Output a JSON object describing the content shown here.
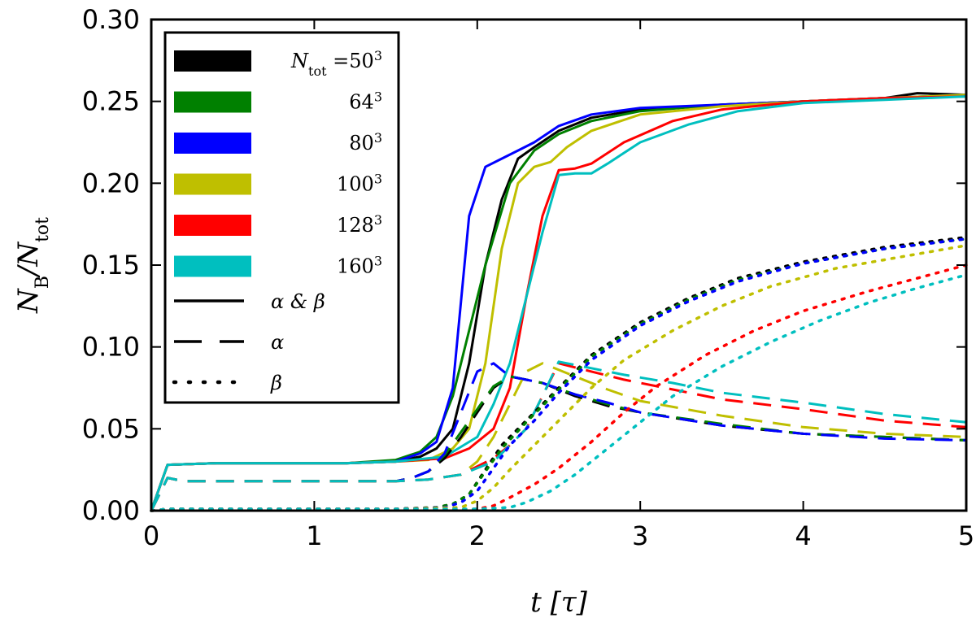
{
  "chart_data": {
    "type": "line",
    "title": "",
    "xlabel": "t [τ]",
    "ylabel": "N_B/N_tot",
    "ylabel_main": "N",
    "ylabel_main_sub": "B",
    "ylabel_denom": "/N",
    "ylabel_denom_sub": "tot",
    "xlim": [
      0,
      5
    ],
    "ylim": [
      0,
      0.3
    ],
    "xticks": [
      0,
      1,
      2,
      3,
      4,
      5
    ],
    "xtick_labels": [
      "0",
      "1",
      "2",
      "3",
      "4",
      "5"
    ],
    "yticks": [
      0,
      0.05,
      0.1,
      0.15,
      0.2,
      0.25,
      0.3
    ],
    "ytick_labels": [
      "0.00",
      "0.05",
      "0.10",
      "0.15",
      "0.20",
      "0.25",
      "0.30"
    ],
    "legend_position": "top-left",
    "legend": {
      "resolutions": [
        {
          "label_prefix": "N",
          "label_sub": "tot",
          "label_eq": " =50",
          "label_sup": "3",
          "color": "#000000"
        },
        {
          "label_prefix": "",
          "label_sub": "",
          "label_eq": "64",
          "label_sup": "3",
          "color": "#008000"
        },
        {
          "label_prefix": "",
          "label_sub": "",
          "label_eq": "80",
          "label_sup": "3",
          "color": "#0000ff"
        },
        {
          "label_prefix": "",
          "label_sub": "",
          "label_eq": "100",
          "label_sup": "3",
          "color": "#bfbf00"
        },
        {
          "label_prefix": "",
          "label_sub": "",
          "label_eq": "128",
          "label_sup": "3",
          "color": "#ff0000"
        },
        {
          "label_prefix": "",
          "label_sub": "",
          "label_eq": "160",
          "label_sup": "3",
          "color": "#00bfbf"
        }
      ],
      "styles": [
        {
          "label": "α & β",
          "dash": "solid"
        },
        {
          "label": "α",
          "dash": "dashed"
        },
        {
          "label": "β",
          "dash": "dotted"
        }
      ]
    },
    "series": [
      {
        "name": "50^3 α&β",
        "color": "#000000",
        "dash": "solid",
        "x": [
          0,
          0.1,
          0.4,
          0.8,
          1.2,
          1.5,
          1.65,
          1.75,
          1.85,
          1.95,
          2.05,
          2.15,
          2.25,
          2.35,
          2.5,
          2.7,
          3.0,
          3.5,
          4.0,
          4.5,
          4.7,
          5.0
        ],
        "y": [
          0,
          0.028,
          0.029,
          0.029,
          0.029,
          0.03,
          0.033,
          0.038,
          0.05,
          0.09,
          0.15,
          0.19,
          0.215,
          0.222,
          0.232,
          0.24,
          0.245,
          0.248,
          0.25,
          0.252,
          0.255,
          0.254
        ]
      },
      {
        "name": "64^3 α&β",
        "color": "#008000",
        "dash": "solid",
        "x": [
          0,
          0.1,
          0.4,
          0.8,
          1.2,
          1.5,
          1.65,
          1.75,
          1.85,
          1.95,
          2.05,
          2.2,
          2.35,
          2.5,
          2.7,
          3.0,
          3.5,
          4.0,
          4.5,
          5.0
        ],
        "y": [
          0,
          0.028,
          0.029,
          0.029,
          0.029,
          0.031,
          0.036,
          0.045,
          0.07,
          0.11,
          0.15,
          0.2,
          0.22,
          0.23,
          0.238,
          0.244,
          0.248,
          0.25,
          0.252,
          0.254
        ]
      },
      {
        "name": "80^3 α&β",
        "color": "#0000ff",
        "dash": "solid",
        "x": [
          0,
          0.1,
          0.4,
          0.8,
          1.2,
          1.5,
          1.65,
          1.75,
          1.85,
          1.95,
          2.05,
          2.15,
          2.25,
          2.35,
          2.5,
          2.7,
          3.0,
          3.5,
          4.0,
          4.5,
          5.0
        ],
        "y": [
          0,
          0.028,
          0.029,
          0.029,
          0.029,
          0.03,
          0.035,
          0.042,
          0.075,
          0.18,
          0.21,
          0.215,
          0.22,
          0.225,
          0.235,
          0.242,
          0.246,
          0.248,
          0.25,
          0.252,
          0.254
        ]
      },
      {
        "name": "100^3 α&β",
        "color": "#bfbf00",
        "dash": "solid",
        "x": [
          0,
          0.1,
          0.4,
          0.8,
          1.2,
          1.5,
          1.7,
          1.85,
          1.95,
          2.05,
          2.15,
          2.25,
          2.35,
          2.45,
          2.55,
          2.7,
          3.0,
          3.5,
          4.0,
          4.5,
          5.0
        ],
        "y": [
          0,
          0.028,
          0.029,
          0.029,
          0.029,
          0.03,
          0.031,
          0.038,
          0.05,
          0.09,
          0.16,
          0.2,
          0.21,
          0.213,
          0.222,
          0.232,
          0.242,
          0.247,
          0.25,
          0.252,
          0.254
        ]
      },
      {
        "name": "128^3 α&β",
        "color": "#ff0000",
        "dash": "solid",
        "x": [
          0,
          0.1,
          0.4,
          0.8,
          1.2,
          1.5,
          1.8,
          1.95,
          2.1,
          2.2,
          2.3,
          2.4,
          2.5,
          2.6,
          2.7,
          2.9,
          3.2,
          3.5,
          4.0,
          4.5,
          5.0
        ],
        "y": [
          0,
          0.028,
          0.029,
          0.029,
          0.029,
          0.03,
          0.032,
          0.038,
          0.05,
          0.075,
          0.13,
          0.18,
          0.208,
          0.209,
          0.212,
          0.225,
          0.238,
          0.245,
          0.25,
          0.252,
          0.253
        ]
      },
      {
        "name": "160^3 α&β",
        "color": "#00bfbf",
        "dash": "solid",
        "x": [
          0,
          0.1,
          0.4,
          0.8,
          1.2,
          1.5,
          1.8,
          2.0,
          2.1,
          2.2,
          2.3,
          2.4,
          2.5,
          2.6,
          2.7,
          2.8,
          3.0,
          3.3,
          3.6,
          4.0,
          4.5,
          5.0
        ],
        "y": [
          0,
          0.028,
          0.029,
          0.029,
          0.029,
          0.03,
          0.033,
          0.045,
          0.065,
          0.09,
          0.13,
          0.17,
          0.205,
          0.206,
          0.206,
          0.212,
          0.225,
          0.236,
          0.244,
          0.249,
          0.251,
          0.253
        ]
      },
      {
        "name": "50^3 α",
        "color": "#000000",
        "dash": "dashed",
        "x": [
          0,
          0.1,
          0.2,
          0.5,
          1.0,
          1.5,
          1.6,
          1.7,
          1.8,
          1.9,
          2.0,
          2.1,
          2.2,
          2.4,
          2.6,
          2.8,
          3.0,
          3.5,
          4.0,
          4.5,
          5.0
        ],
        "y": [
          0,
          0.02,
          0.018,
          0.018,
          0.018,
          0.018,
          0.02,
          0.024,
          0.032,
          0.045,
          0.06,
          0.075,
          0.082,
          0.078,
          0.07,
          0.064,
          0.06,
          0.052,
          0.047,
          0.045,
          0.043
        ]
      },
      {
        "name": "64^3 α",
        "color": "#008000",
        "dash": "dashed",
        "x": [
          0,
          0.1,
          0.2,
          0.5,
          1.0,
          1.5,
          1.6,
          1.7,
          1.8,
          1.9,
          2.0,
          2.1,
          2.2,
          2.4,
          2.6,
          2.8,
          3.0,
          3.5,
          4.0,
          4.5,
          5.0
        ],
        "y": [
          0,
          0.02,
          0.018,
          0.018,
          0.018,
          0.018,
          0.02,
          0.024,
          0.034,
          0.048,
          0.062,
          0.076,
          0.082,
          0.078,
          0.071,
          0.065,
          0.06,
          0.053,
          0.047,
          0.045,
          0.043
        ]
      },
      {
        "name": "80^3 α",
        "color": "#0000ff",
        "dash": "dashed",
        "x": [
          0,
          0.1,
          0.2,
          0.5,
          1.0,
          1.5,
          1.6,
          1.7,
          1.8,
          1.9,
          2.0,
          2.1,
          2.2,
          2.4,
          2.6,
          2.8,
          3.0,
          3.5,
          4.0,
          4.5,
          5.0
        ],
        "y": [
          0,
          0.02,
          0.018,
          0.018,
          0.018,
          0.018,
          0.02,
          0.024,
          0.035,
          0.06,
          0.085,
          0.09,
          0.082,
          0.078,
          0.071,
          0.066,
          0.06,
          0.052,
          0.047,
          0.044,
          0.043
        ]
      },
      {
        "name": "100^3 α",
        "color": "#bfbf00",
        "dash": "dashed",
        "x": [
          0,
          0.1,
          0.2,
          0.5,
          1.0,
          1.5,
          1.7,
          1.9,
          2.0,
          2.1,
          2.2,
          2.3,
          2.4,
          2.6,
          2.8,
          3.0,
          3.5,
          4.0,
          4.5,
          5.0
        ],
        "y": [
          0,
          0.02,
          0.018,
          0.018,
          0.018,
          0.018,
          0.019,
          0.022,
          0.03,
          0.045,
          0.065,
          0.085,
          0.09,
          0.082,
          0.074,
          0.067,
          0.058,
          0.051,
          0.047,
          0.045
        ]
      },
      {
        "name": "128^3 α",
        "color": "#ff0000",
        "dash": "dashed",
        "x": [
          0,
          0.1,
          0.2,
          0.5,
          1.0,
          1.5,
          1.7,
          1.9,
          2.1,
          2.2,
          2.3,
          2.4,
          2.5,
          2.7,
          2.9,
          3.2,
          3.5,
          4.0,
          4.5,
          5.0
        ],
        "y": [
          0,
          0.02,
          0.018,
          0.018,
          0.018,
          0.018,
          0.019,
          0.022,
          0.032,
          0.04,
          0.05,
          0.07,
          0.09,
          0.085,
          0.08,
          0.074,
          0.068,
          0.062,
          0.055,
          0.051
        ]
      },
      {
        "name": "160^3 α",
        "color": "#00bfbf",
        "dash": "dashed",
        "x": [
          0,
          0.1,
          0.2,
          0.5,
          1.0,
          1.5,
          1.7,
          1.9,
          2.1,
          2.2,
          2.3,
          2.4,
          2.5,
          2.7,
          2.9,
          3.2,
          3.5,
          4.0,
          4.5,
          5.0
        ],
        "y": [
          0,
          0.02,
          0.018,
          0.018,
          0.018,
          0.018,
          0.019,
          0.022,
          0.03,
          0.04,
          0.05,
          0.07,
          0.091,
          0.087,
          0.083,
          0.078,
          0.072,
          0.066,
          0.059,
          0.054
        ]
      },
      {
        "name": "50^3 β",
        "color": "#000000",
        "dash": "dotted",
        "x": [
          0,
          0.1,
          0.5,
          1.0,
          1.5,
          1.75,
          1.85,
          1.95,
          2.05,
          2.15,
          2.3,
          2.5,
          2.7,
          3.0,
          3.3,
          3.6,
          4.0,
          4.5,
          5.0
        ],
        "y": [
          0,
          0.001,
          0.001,
          0.001,
          0.001,
          0.002,
          0.004,
          0.01,
          0.025,
          0.04,
          0.055,
          0.075,
          0.095,
          0.115,
          0.13,
          0.142,
          0.152,
          0.161,
          0.167
        ]
      },
      {
        "name": "64^3 β",
        "color": "#008000",
        "dash": "dotted",
        "x": [
          0,
          0.1,
          0.5,
          1.0,
          1.5,
          1.75,
          1.85,
          1.95,
          2.05,
          2.15,
          2.3,
          2.5,
          2.7,
          3.0,
          3.3,
          3.6,
          4.0,
          4.5,
          5.0
        ],
        "y": [
          0,
          0.001,
          0.001,
          0.001,
          0.001,
          0.002,
          0.004,
          0.01,
          0.024,
          0.038,
          0.054,
          0.074,
          0.094,
          0.114,
          0.129,
          0.141,
          0.151,
          0.16,
          0.166
        ]
      },
      {
        "name": "80^3 β",
        "color": "#0000ff",
        "dash": "dotted",
        "x": [
          0,
          0.1,
          0.5,
          1.0,
          1.5,
          1.8,
          1.9,
          2.0,
          2.1,
          2.2,
          2.35,
          2.5,
          2.7,
          3.0,
          3.3,
          3.6,
          4.0,
          4.5,
          5.0
        ],
        "y": [
          0,
          0.001,
          0.001,
          0.001,
          0.001,
          0.002,
          0.005,
          0.012,
          0.026,
          0.04,
          0.055,
          0.072,
          0.092,
          0.113,
          0.128,
          0.14,
          0.151,
          0.16,
          0.166
        ]
      },
      {
        "name": "100^3 β",
        "color": "#bfbf00",
        "dash": "dotted",
        "x": [
          0,
          0.1,
          0.5,
          1.0,
          1.5,
          1.9,
          2.0,
          2.1,
          2.2,
          2.35,
          2.5,
          2.7,
          2.9,
          3.2,
          3.5,
          3.8,
          4.2,
          4.6,
          5.0
        ],
        "y": [
          0,
          0.001,
          0.001,
          0.001,
          0.001,
          0.002,
          0.006,
          0.014,
          0.025,
          0.04,
          0.055,
          0.075,
          0.092,
          0.11,
          0.125,
          0.137,
          0.148,
          0.155,
          0.162
        ]
      },
      {
        "name": "128^3 β",
        "color": "#ff0000",
        "dash": "dotted",
        "x": [
          0,
          0.1,
          0.5,
          1.0,
          1.5,
          2.0,
          2.1,
          2.2,
          2.35,
          2.5,
          2.7,
          2.9,
          3.1,
          3.4,
          3.7,
          4.0,
          4.4,
          4.7,
          5.0
        ],
        "y": [
          0,
          0.001,
          0.001,
          0.001,
          0.001,
          0.001,
          0.003,
          0.008,
          0.016,
          0.026,
          0.042,
          0.06,
          0.076,
          0.095,
          0.11,
          0.122,
          0.134,
          0.142,
          0.15
        ]
      },
      {
        "name": "160^3 β",
        "color": "#00bfbf",
        "dash": "dotted",
        "x": [
          0,
          0.1,
          0.5,
          1.0,
          1.5,
          2.0,
          2.2,
          2.3,
          2.45,
          2.6,
          2.8,
          3.0,
          3.2,
          3.5,
          3.8,
          4.1,
          4.4,
          4.7,
          5.0
        ],
        "y": [
          0,
          0.001,
          0.001,
          0.001,
          0.001,
          0.001,
          0.002,
          0.005,
          0.012,
          0.022,
          0.038,
          0.054,
          0.07,
          0.088,
          0.103,
          0.116,
          0.127,
          0.136,
          0.144
        ]
      }
    ]
  }
}
